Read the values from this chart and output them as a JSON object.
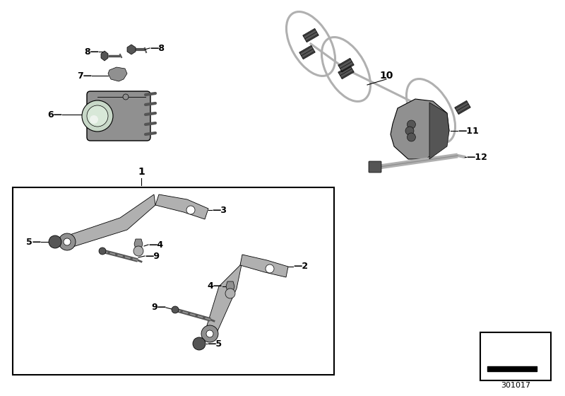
{
  "bg_color": "#ffffff",
  "line_color": "#000000",
  "part_color": "#b0b0b0",
  "part_color2": "#909090",
  "dark_part_color": "#555555",
  "label_color": "#000000",
  "page_num": "301017",
  "fig_w": 8.0,
  "fig_h": 5.6,
  "dpi": 100
}
